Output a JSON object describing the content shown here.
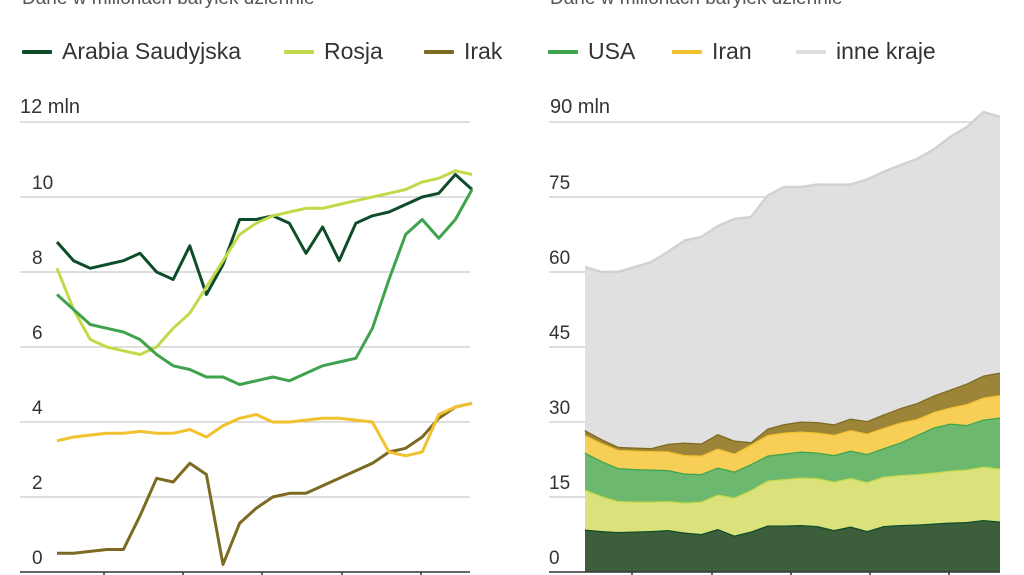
{
  "subtitles": {
    "left": "Dane w milionach baryłek dziennie",
    "right": "Dane w milionach baryłek dziennie"
  },
  "legend": [
    {
      "label": "Arabia Saudyjska",
      "color": "#0f4d2a"
    },
    {
      "label": "Rosja",
      "color": "#c2d94a"
    },
    {
      "label": "Irak",
      "color": "#7d6a22"
    },
    {
      "label": "USA",
      "color": "#3fa34d"
    },
    {
      "label": "Iran",
      "color": "#f2c12e"
    },
    {
      "label": "inne kraje",
      "color": "#e0e0e0"
    }
  ],
  "chart_data": [
    {
      "type": "line",
      "unit_label": "12 mln",
      "ylim": [
        0,
        12
      ],
      "yticks": [
        0,
        2,
        4,
        6,
        8,
        10
      ],
      "x_index": [
        0,
        4,
        8,
        12,
        16,
        20,
        24,
        28,
        32,
        36,
        40,
        44,
        48,
        52,
        56,
        60,
        64,
        68,
        72,
        76,
        80,
        84,
        88,
        92,
        96,
        100
      ],
      "series": [
        {
          "name": "Arabia Saudyjska",
          "color": "#0f4d2a",
          "values": [
            8.8,
            8.3,
            8.1,
            8.2,
            8.3,
            8.5,
            8.0,
            7.8,
            8.7,
            7.4,
            8.2,
            9.4,
            9.4,
            9.5,
            9.3,
            8.5,
            9.2,
            8.3,
            9.3,
            9.5,
            9.6,
            9.8,
            10.0,
            10.1,
            10.6,
            10.2
          ]
        },
        {
          "name": "Rosja",
          "color": "#c2d94a",
          "values": [
            8.1,
            7.0,
            6.2,
            6.0,
            5.9,
            5.8,
            6.0,
            6.5,
            6.9,
            7.6,
            8.3,
            9.0,
            9.3,
            9.5,
            9.6,
            9.7,
            9.7,
            9.8,
            9.9,
            10.0,
            10.1,
            10.2,
            10.4,
            10.5,
            10.7,
            10.6
          ]
        },
        {
          "name": "Irak",
          "color": "#7d6a22",
          "values": [
            0.5,
            0.5,
            0.55,
            0.6,
            0.6,
            1.5,
            2.5,
            2.4,
            2.9,
            2.6,
            0.2,
            1.3,
            1.7,
            2.0,
            2.1,
            2.1,
            2.3,
            2.5,
            2.7,
            2.9,
            3.2,
            3.3,
            3.6,
            4.1,
            4.4,
            4.5
          ]
        },
        {
          "name": "USA",
          "color": "#3fa34d",
          "values": [
            7.4,
            7.0,
            6.6,
            6.5,
            6.4,
            6.2,
            5.8,
            5.5,
            5.4,
            5.2,
            5.2,
            5.0,
            5.1,
            5.2,
            5.1,
            5.3,
            5.5,
            5.6,
            5.7,
            6.5,
            7.8,
            9.0,
            9.4,
            8.9,
            9.4,
            10.2
          ]
        },
        {
          "name": "Iran",
          "color": "#f2c12e",
          "values": [
            3.5,
            3.6,
            3.65,
            3.7,
            3.7,
            3.75,
            3.7,
            3.7,
            3.8,
            3.6,
            3.9,
            4.1,
            4.2,
            4.0,
            4.0,
            4.05,
            4.1,
            4.1,
            4.05,
            4.0,
            3.2,
            3.1,
            3.2,
            4.2,
            4.4,
            4.5
          ]
        }
      ]
    },
    {
      "type": "area",
      "unit_label": "90 mln",
      "ylim": [
        0,
        90
      ],
      "yticks": [
        0,
        15,
        30,
        45,
        60,
        75
      ],
      "stacking": "stacked",
      "x_index": [
        0,
        4,
        8,
        12,
        16,
        20,
        24,
        28,
        32,
        36,
        40,
        44,
        48,
        52,
        56,
        60,
        64,
        68,
        72,
        76,
        80,
        84,
        88,
        92,
        96,
        100
      ],
      "series": [
        {
          "name": "Arabia Saudyjska",
          "color": "#3d5e3a",
          "line_color": "#0f4d2a",
          "values": [
            8.5,
            8.2,
            8.0,
            8.1,
            8.2,
            8.4,
            7.9,
            7.6,
            8.6,
            7.3,
            8.1,
            9.3,
            9.3,
            9.4,
            9.2,
            8.4,
            9.1,
            8.2,
            9.2,
            9.4,
            9.5,
            9.7,
            9.9,
            10.0,
            10.4,
            10.1
          ]
        },
        {
          "name": "Rosja",
          "color": "#dbe27c",
          "line_color": "#c2d94a",
          "values": [
            8.0,
            7.0,
            6.2,
            6.0,
            5.9,
            5.8,
            6.0,
            6.5,
            6.9,
            7.6,
            8.3,
            9.0,
            9.3,
            9.5,
            9.6,
            9.7,
            9.7,
            9.8,
            9.9,
            10.0,
            10.1,
            10.2,
            10.4,
            10.5,
            10.7,
            10.6
          ]
        },
        {
          "name": "USA",
          "color": "#6db86f",
          "line_color": "#3fa34d",
          "values": [
            7.4,
            7.0,
            6.6,
            6.5,
            6.4,
            6.2,
            5.8,
            5.5,
            5.4,
            5.2,
            5.2,
            5.0,
            5.1,
            5.2,
            5.1,
            5.3,
            5.5,
            5.6,
            5.7,
            6.5,
            7.8,
            9.0,
            9.4,
            8.9,
            9.4,
            10.2
          ]
        },
        {
          "name": "Iran",
          "color": "#f7cf56",
          "line_color": "#f2c12e",
          "values": [
            3.5,
            3.6,
            3.65,
            3.7,
            3.7,
            3.75,
            3.7,
            3.7,
            3.8,
            3.6,
            3.9,
            4.1,
            4.2,
            4.0,
            4.0,
            4.05,
            4.1,
            4.1,
            4.05,
            4.0,
            3.2,
            3.1,
            3.2,
            4.2,
            4.4,
            4.5
          ]
        },
        {
          "name": "Irak",
          "color": "#9c8438",
          "line_color": "#7d6a22",
          "values": [
            1.0,
            0.8,
            0.6,
            0.6,
            0.6,
            1.5,
            2.5,
            2.4,
            2.9,
            2.6,
            0.5,
            1.3,
            1.7,
            2.0,
            2.1,
            2.1,
            2.3,
            2.5,
            2.7,
            2.9,
            3.2,
            3.3,
            3.6,
            4.1,
            4.4,
            4.5
          ]
        },
        {
          "name": "inne kraje",
          "color": "#e0e0e0",
          "line_color": "#d2d2d2",
          "values": [
            32.6,
            33.4,
            35.0,
            36.1,
            37.2,
            38.4,
            40.4,
            41.3,
            41.6,
            44.3,
            45.0,
            46.6,
            47.4,
            46.9,
            47.5,
            47.9,
            46.8,
            48.3,
            48.5,
            48.6,
            48.8,
            49.2,
            50.5,
            51.3,
            52.7,
            51.1
          ]
        }
      ]
    }
  ]
}
